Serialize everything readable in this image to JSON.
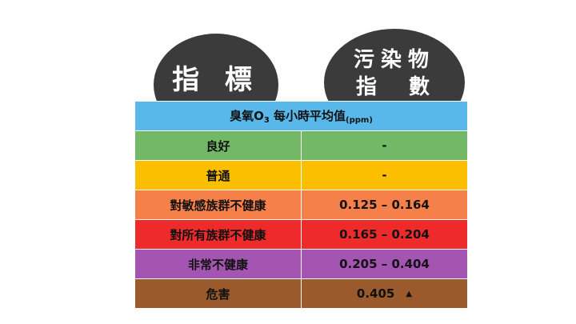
{
  "bubbles": {
    "left": {
      "text": "指 標"
    },
    "right": {
      "line1": "污染物",
      "line2": "指數"
    }
  },
  "table": {
    "header": {
      "prefix": "臭氧O",
      "subscript_3": "3",
      "middle": " 每小時平均值",
      "unit": "(ppm)"
    },
    "rows": [
      {
        "label": "良好",
        "value": "-",
        "color": "#72b866"
      },
      {
        "label": "普通",
        "value": "-",
        "color": "#fcbf00"
      },
      {
        "label": "對敏感族群不健康",
        "value": "0.125 – 0.164",
        "color": "#f6804a"
      },
      {
        "label": "對所有族群不健康",
        "value": "0.165 – 0.204",
        "color": "#ee2a2a"
      },
      {
        "label": "非常不健康",
        "value": "0.205 – 0.404",
        "color": "#a455b1"
      },
      {
        "label": "危害",
        "value": "0.405",
        "arrow": "▲",
        "color": "#9a5a2b"
      }
    ],
    "header_color": "#59b8ea"
  }
}
